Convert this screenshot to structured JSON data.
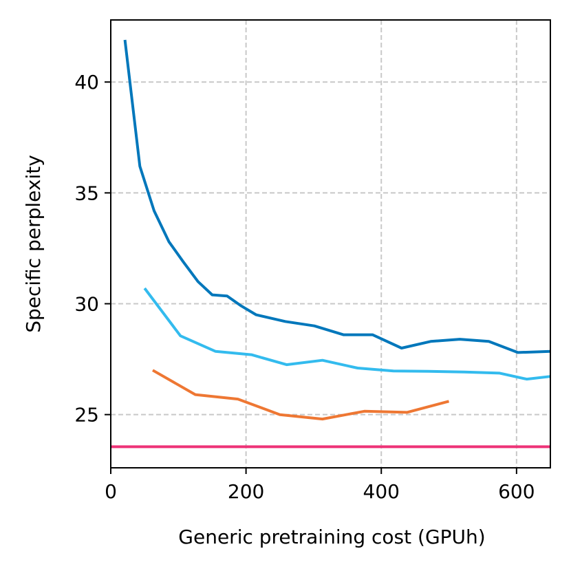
{
  "chart_data": {
    "type": "line",
    "title": "",
    "xlabel": "Generic pretraining cost (GPUh)",
    "ylabel": "Specific perplexity",
    "xlim": [
      0,
      650
    ],
    "ylim": [
      22.6,
      42.8
    ],
    "xticks": [
      0,
      200,
      400,
      600
    ],
    "yticks": [
      25,
      30,
      35,
      40
    ],
    "grid": true,
    "series": [
      {
        "name": "series-dark-blue",
        "color": "#0077BB",
        "x": [
          21,
          43,
          64,
          86,
          107,
          129,
          150,
          172,
          193,
          215,
          258,
          301,
          344,
          387,
          430,
          473,
          516,
          559,
          602,
          650
        ],
        "y": [
          41.9,
          36.2,
          34.2,
          32.8,
          31.9,
          31.0,
          30.4,
          30.35,
          29.9,
          29.5,
          29.2,
          29.0,
          28.6,
          28.6,
          28.0,
          28.3,
          28.4,
          28.3,
          27.8,
          27.85
        ]
      },
      {
        "name": "series-light-blue",
        "color": "#33BBEE",
        "x": [
          50,
          103,
          155,
          208,
          260,
          313,
          365,
          418,
          470,
          523,
          575,
          615,
          650
        ],
        "y": [
          30.7,
          28.55,
          27.85,
          27.7,
          27.25,
          27.45,
          27.1,
          26.97,
          26.95,
          26.92,
          26.87,
          26.6,
          26.72
        ]
      },
      {
        "name": "series-orange",
        "color": "#EE7733",
        "x": [
          62,
          125,
          188,
          250,
          313,
          375,
          438,
          500
        ],
        "y": [
          27.0,
          25.9,
          25.7,
          25.0,
          24.8,
          25.15,
          25.1,
          25.6
        ]
      },
      {
        "name": "baseline",
        "color": "#EE3377",
        "x": [
          0,
          650
        ],
        "y": [
          23.55,
          23.55
        ]
      }
    ]
  }
}
